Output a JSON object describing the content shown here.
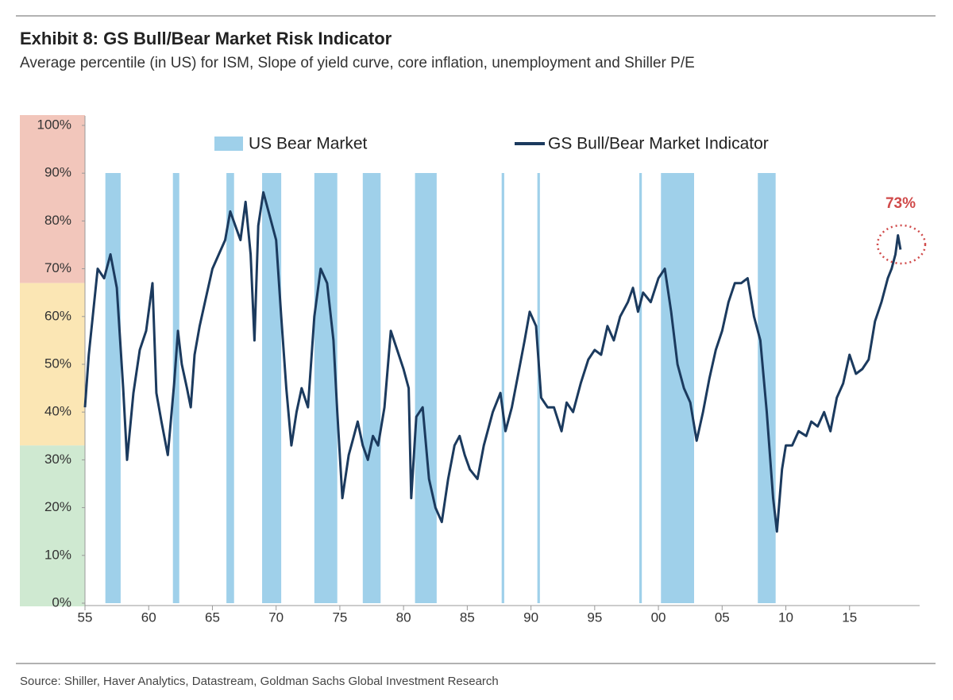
{
  "chart_data": {
    "type": "line",
    "title": "Exhibit 8: GS Bull/Bear Market Risk Indicator",
    "subtitle": "Average percentile (in US) for ISM, Slope of yield curve, core inflation, unemployment and Shiller P/E",
    "source": "Source: Shiller, Haver Analytics, Datastream, Goldman Sachs Global Investment Research",
    "annotation": "73%",
    "xlim": [
      1955,
      2020.5
    ],
    "xticks": [
      {
        "value": 1955,
        "label": "55"
      },
      {
        "value": 1960,
        "label": "60"
      },
      {
        "value": 1965,
        "label": "65"
      },
      {
        "value": 1970,
        "label": "70"
      },
      {
        "value": 1975,
        "label": "75"
      },
      {
        "value": 1980,
        "label": "80"
      },
      {
        "value": 1985,
        "label": "85"
      },
      {
        "value": 1990,
        "label": "90"
      },
      {
        "value": 1995,
        "label": "95"
      },
      {
        "value": 2000,
        "label": "00"
      },
      {
        "value": 2005,
        "label": "05"
      },
      {
        "value": 2010,
        "label": "10"
      },
      {
        "value": 2015,
        "label": "15"
      }
    ],
    "ylim": [
      0,
      100
    ],
    "yticks": [
      {
        "value": 0,
        "label": "0%"
      },
      {
        "value": 10,
        "label": "10%"
      },
      {
        "value": 20,
        "label": "20%"
      },
      {
        "value": 30,
        "label": "30%"
      },
      {
        "value": 40,
        "label": "40%"
      },
      {
        "value": 50,
        "label": "50%"
      },
      {
        "value": 60,
        "label": "60%"
      },
      {
        "value": 70,
        "label": "70%"
      },
      {
        "value": 80,
        "label": "80%"
      },
      {
        "value": 90,
        "label": "90%"
      },
      {
        "value": 100,
        "label": "100%"
      }
    ],
    "zones": [
      {
        "from": 67,
        "to": 100,
        "color": "#f2c6bb"
      },
      {
        "from": 33,
        "to": 67,
        "color": "#fbe6b4"
      },
      {
        "from": 0,
        "to": 33,
        "color": "#cfe9d1"
      }
    ],
    "shaded_regions": {
      "name": "US Bear Market",
      "color": "#9fd0ea",
      "ranges": [
        [
          1956.6,
          1957.8
        ],
        [
          1961.9,
          1962.4
        ],
        [
          1966.1,
          1966.7
        ],
        [
          1968.9,
          1970.4
        ],
        [
          1973.0,
          1974.8
        ],
        [
          1976.8,
          1978.2
        ],
        [
          1980.9,
          1982.6
        ],
        [
          1987.7,
          1987.9
        ],
        [
          1990.5,
          1990.7
        ],
        [
          1998.5,
          1998.7
        ],
        [
          2000.2,
          2002.8
        ],
        [
          2007.8,
          2009.2
        ]
      ]
    },
    "x": [
      1955.0,
      1955.3,
      1956.0,
      1956.5,
      1957.0,
      1957.5,
      1958.0,
      1958.3,
      1958.8,
      1959.3,
      1959.8,
      1960.3,
      1960.6,
      1961.0,
      1961.5,
      1962.0,
      1962.3,
      1962.6,
      1963.0,
      1963.3,
      1963.6,
      1964.0,
      1964.5,
      1965.0,
      1965.5,
      1966.0,
      1966.4,
      1966.8,
      1967.2,
      1967.6,
      1968.0,
      1968.3,
      1968.6,
      1969.0,
      1969.5,
      1970.0,
      1970.4,
      1970.8,
      1971.2,
      1971.6,
      1972.0,
      1972.5,
      1973.0,
      1973.5,
      1974.0,
      1974.5,
      1974.8,
      1975.2,
      1975.7,
      1976.0,
      1976.4,
      1976.8,
      1977.2,
      1977.6,
      1978.0,
      1978.5,
      1979.0,
      1979.5,
      1980.0,
      1980.4,
      1980.6,
      1981.0,
      1981.5,
      1982.0,
      1982.5,
      1983.0,
      1983.5,
      1984.0,
      1984.4,
      1984.8,
      1985.2,
      1985.8,
      1986.3,
      1987.0,
      1987.6,
      1988.0,
      1988.5,
      1989.0,
      1989.5,
      1989.9,
      1990.4,
      1990.8,
      1991.3,
      1991.8,
      1992.4,
      1992.8,
      1993.3,
      1993.9,
      1994.5,
      1995.0,
      1995.5,
      1996.0,
      1996.5,
      1997.0,
      1997.6,
      1998.0,
      1998.4,
      1998.8,
      1999.4,
      2000.0,
      2000.5,
      2001.0,
      2001.5,
      2002.0,
      2002.5,
      2003.0,
      2003.5,
      2004.0,
      2004.5,
      2005.0,
      2005.5,
      2006.0,
      2006.5,
      2007.0,
      2007.5,
      2008.0,
      2008.5,
      2009.0,
      2009.3,
      2009.7,
      2010.0,
      2010.5,
      2011.0,
      2011.6,
      2012.0,
      2012.5,
      2013.0,
      2013.5,
      2014.0,
      2014.5,
      2015.0,
      2015.5,
      2016.0,
      2016.5,
      2017.0,
      2017.5,
      2018.0,
      2018.3,
      2018.6,
      2018.8,
      2019.0
    ],
    "series": [
      {
        "name": "GS Bull/Bear Market Indicator",
        "color": "#1b3a5e",
        "values": [
          41,
          52,
          70,
          68,
          73,
          66,
          45,
          30,
          44,
          53,
          57,
          67,
          44,
          38,
          31,
          46,
          57,
          50,
          45,
          41,
          52,
          58,
          64,
          70,
          73,
          76,
          82,
          79,
          76,
          84,
          73,
          55,
          79,
          86,
          81,
          76,
          60,
          45,
          33,
          40,
          45,
          41,
          60,
          70,
          67,
          55,
          40,
          22,
          31,
          34,
          38,
          33,
          30,
          35,
          33,
          41,
          57,
          53,
          49,
          45,
          22,
          39,
          41,
          26,
          20,
          17,
          26,
          33,
          35,
          31,
          28,
          26,
          33,
          40,
          44,
          36,
          41,
          48,
          55,
          61,
          58,
          43,
          41,
          41,
          36,
          42,
          40,
          46,
          51,
          53,
          52,
          58,
          55,
          60,
          63,
          66,
          61,
          65,
          63,
          68,
          70,
          61,
          50,
          45,
          42,
          34,
          40,
          47,
          53,
          57,
          63,
          67,
          67,
          68,
          60,
          55,
          40,
          22,
          15,
          28,
          33,
          33,
          36,
          35,
          38,
          37,
          40,
          36,
          43,
          46,
          52,
          48,
          49,
          51,
          59,
          63,
          68,
          70,
          73,
          77,
          74
        ]
      }
    ]
  }
}
